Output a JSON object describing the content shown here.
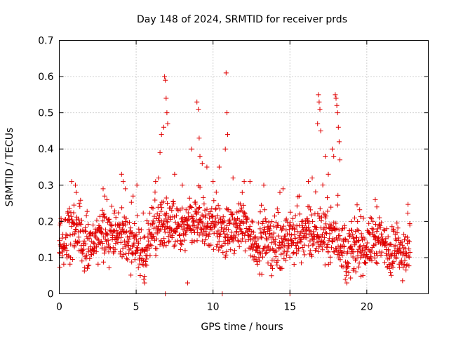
{
  "chart_data": {
    "type": "scatter",
    "title": "Day 148 of 2024, SRMTID for receiver prds",
    "xlabel": "GPS time / hours",
    "ylabel": "SRMTID / TECUs",
    "xlim": [
      0,
      24
    ],
    "ylim": [
      0,
      0.7
    ],
    "xticks": [
      "0",
      "5",
      "10",
      "15",
      "20"
    ],
    "xtick_values": [
      0,
      5,
      10,
      15,
      20
    ],
    "yticks": [
      "0",
      "0.1",
      "0.2",
      "0.3",
      "0.4",
      "0.5",
      "0.6",
      "0.7"
    ],
    "ytick_values": [
      0,
      0.1,
      0.2,
      0.3,
      0.4,
      0.5,
      0.6,
      0.7
    ],
    "grid": true,
    "marker": "+",
    "series": [
      {
        "name": "SRMTID",
        "color": "#e00000",
        "profile": [
          [
            0.0,
            0.14
          ],
          [
            0.5,
            0.16
          ],
          [
            1.0,
            0.17
          ],
          [
            1.5,
            0.15
          ],
          [
            2.0,
            0.13
          ],
          [
            2.5,
            0.15
          ],
          [
            3.0,
            0.17
          ],
          [
            3.5,
            0.16
          ],
          [
            4.0,
            0.17
          ],
          [
            4.5,
            0.15
          ],
          [
            5.0,
            0.14
          ],
          [
            5.3,
            0.09
          ],
          [
            5.6,
            0.11
          ],
          [
            6.0,
            0.17
          ],
          [
            6.5,
            0.19
          ],
          [
            7.0,
            0.2
          ],
          [
            7.5,
            0.18
          ],
          [
            8.0,
            0.17
          ],
          [
            8.5,
            0.19
          ],
          [
            9.0,
            0.2
          ],
          [
            9.5,
            0.18
          ],
          [
            10.0,
            0.2
          ],
          [
            10.5,
            0.17
          ],
          [
            11.0,
            0.16
          ],
          [
            11.5,
            0.18
          ],
          [
            12.0,
            0.19
          ],
          [
            12.5,
            0.15
          ],
          [
            13.0,
            0.14
          ],
          [
            13.5,
            0.15
          ],
          [
            14.0,
            0.14
          ],
          [
            14.5,
            0.14
          ],
          [
            15.0,
            0.15
          ],
          [
            15.5,
            0.16
          ],
          [
            16.0,
            0.17
          ],
          [
            16.5,
            0.16
          ],
          [
            17.0,
            0.17
          ],
          [
            17.5,
            0.16
          ],
          [
            18.0,
            0.16
          ],
          [
            18.5,
            0.12
          ],
          [
            19.0,
            0.12
          ],
          [
            19.5,
            0.13
          ],
          [
            20.0,
            0.13
          ],
          [
            20.5,
            0.15
          ],
          [
            21.0,
            0.14
          ],
          [
            21.5,
            0.12
          ],
          [
            22.0,
            0.12
          ],
          [
            22.5,
            0.12
          ],
          [
            22.8,
            0.13
          ]
        ],
        "excursions": [
          [
            0.05,
            0.19
          ],
          [
            1.05,
            0.3
          ],
          [
            1.1,
            0.28
          ],
          [
            1.3,
            0.25
          ],
          [
            2.85,
            0.29
          ],
          [
            2.95,
            0.27
          ],
          [
            3.1,
            0.26
          ],
          [
            4.05,
            0.33
          ],
          [
            4.15,
            0.31
          ],
          [
            4.3,
            0.29
          ],
          [
            4.8,
            0.27
          ],
          [
            5.05,
            0.3
          ],
          [
            5.5,
            0.04
          ],
          [
            5.55,
            0.03
          ],
          [
            6.45,
            0.32
          ],
          [
            6.55,
            0.39
          ],
          [
            6.65,
            0.44
          ],
          [
            6.8,
            0.46
          ],
          [
            6.85,
            0.6
          ],
          [
            6.9,
            0.59
          ],
          [
            6.95,
            0.54
          ],
          [
            7.0,
            0.5
          ],
          [
            7.05,
            0.47
          ],
          [
            6.9,
            0.0
          ],
          [
            7.5,
            0.33
          ],
          [
            8.0,
            0.3
          ],
          [
            8.35,
            0.03
          ],
          [
            8.6,
            0.4
          ],
          [
            8.95,
            0.53
          ],
          [
            9.05,
            0.51
          ],
          [
            9.1,
            0.43
          ],
          [
            9.15,
            0.38
          ],
          [
            9.3,
            0.36
          ],
          [
            9.6,
            0.35
          ],
          [
            10.0,
            0.31
          ],
          [
            10.4,
            0.35
          ],
          [
            10.6,
            0.0
          ],
          [
            10.85,
            0.61
          ],
          [
            10.9,
            0.5
          ],
          [
            10.95,
            0.44
          ],
          [
            10.8,
            0.4
          ],
          [
            11.3,
            0.32
          ],
          [
            11.9,
            0.28
          ],
          [
            12.4,
            0.31
          ],
          [
            13.3,
            0.3
          ],
          [
            13.8,
            0.05
          ],
          [
            14.35,
            0.28
          ],
          [
            14.55,
            0.29
          ],
          [
            15.0,
            0.0
          ],
          [
            15.6,
            0.27
          ],
          [
            16.2,
            0.31
          ],
          [
            16.45,
            0.32
          ],
          [
            16.85,
            0.55
          ],
          [
            16.9,
            0.53
          ],
          [
            16.95,
            0.51
          ],
          [
            16.8,
            0.47
          ],
          [
            17.0,
            0.45
          ],
          [
            17.3,
            0.38
          ],
          [
            17.5,
            0.33
          ],
          [
            17.75,
            0.4
          ],
          [
            17.85,
            0.38
          ],
          [
            17.95,
            0.55
          ],
          [
            18.0,
            0.54
          ],
          [
            18.05,
            0.52
          ],
          [
            18.1,
            0.5
          ],
          [
            18.15,
            0.46
          ],
          [
            18.2,
            0.42
          ],
          [
            18.25,
            0.37
          ],
          [
            18.6,
            0.04
          ],
          [
            18.7,
            0.03
          ],
          [
            19.0,
            0.2
          ],
          [
            19.4,
            0.2
          ],
          [
            20.55,
            0.26
          ],
          [
            20.65,
            0.24
          ],
          [
            21.3,
            0.18
          ],
          [
            22.8,
            0.19
          ]
        ]
      }
    ]
  }
}
